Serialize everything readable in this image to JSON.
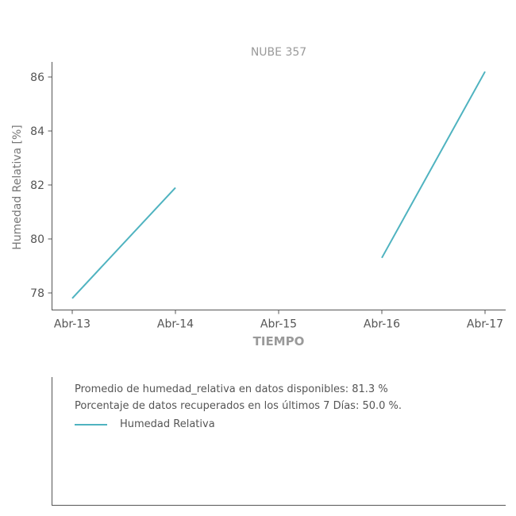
{
  "chart_data": {
    "type": "line",
    "title": "NUBE 357",
    "xlabel": "TIEMPO",
    "ylabel": "Humedad Relativa [%]",
    "categories": [
      "Abr-13",
      "Abr-14",
      "Abr-15",
      "Abr-16",
      "Abr-17"
    ],
    "ylim": [
      77.4,
      86.6
    ],
    "yticks": [
      78,
      80,
      82,
      84,
      86
    ],
    "series": [
      {
        "name": "Humedad Relativa",
        "color": "#4fb3c0",
        "values": [
          77.8,
          81.9,
          null,
          79.3,
          86.2
        ]
      }
    ],
    "grid": false,
    "legend": "top-left"
  },
  "info": {
    "average_line": "Promedio de humedad_relativa en datos disponibles: 81.3 %",
    "recovered_line": "Porcentaje de datos recuperados en los últimos 7 Días: 50.0 %."
  }
}
